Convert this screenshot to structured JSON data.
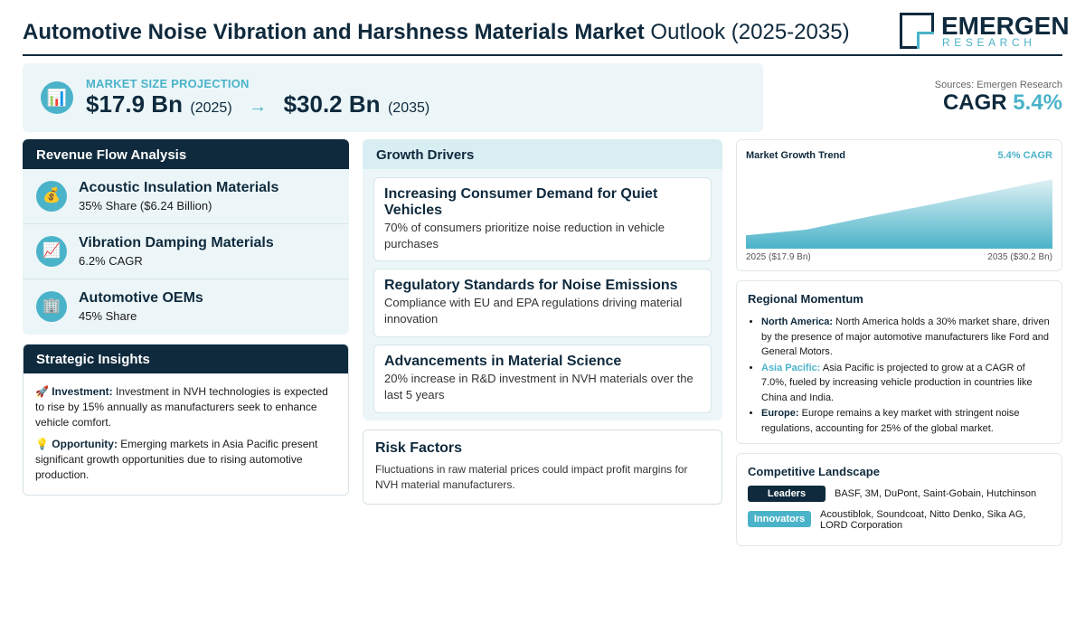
{
  "header": {
    "title_bold": "Automotive Noise Vibration and Harshness Materials Market",
    "title_light": "Outlook (2025-2035)",
    "logo_main": "EMERGEN",
    "logo_sub": "RESEARCH"
  },
  "projection": {
    "label": "MARKET SIZE PROJECTION",
    "start_value": "$17.9 Bn",
    "start_year": "(2025)",
    "arrow": "→",
    "end_value": "$30.2 Bn",
    "end_year": "(2035)",
    "icon": "bar-chart-icon"
  },
  "sources": "Sources: Emergen Research",
  "cagr": {
    "label": "CAGR",
    "value": "5.4%"
  },
  "revenue": {
    "title": "Revenue Flow Analysis",
    "items": [
      {
        "icon": "money-bag-icon",
        "glyph": "💰",
        "title": "Acoustic Insulation Materials",
        "sub": "35% Share ($6.24 Billion)"
      },
      {
        "icon": "trend-up-icon",
        "glyph": "📈",
        "title": "Vibration Damping Materials",
        "sub": "6.2% CAGR"
      },
      {
        "icon": "building-icon",
        "glyph": "🏢",
        "title": "Automotive OEMs",
        "sub": "45% Share"
      }
    ]
  },
  "strategic": {
    "title": "Strategic Insights",
    "items": [
      {
        "glyph": "🚀",
        "label": "Investment:",
        "text": "Investment in NVH technologies is expected to rise by 15% annually as manufacturers seek to enhance vehicle comfort."
      },
      {
        "glyph": "💡",
        "label": "Opportunity:",
        "text": "Emerging markets in Asia Pacific present significant growth opportunities due to rising automotive production."
      }
    ]
  },
  "drivers": {
    "title": "Growth Drivers",
    "items": [
      {
        "title": "Increasing Consumer Demand for Quiet Vehicles",
        "desc": "70% of consumers prioritize noise reduction in vehicle purchases"
      },
      {
        "title": "Regulatory Standards for Noise Emissions",
        "desc": "Compliance with EU and EPA regulations driving material innovation"
      },
      {
        "title": "Advancements in Material Science",
        "desc": "20% increase in R&D investment in NVH materials over the last 5 years"
      }
    ]
  },
  "risk": {
    "title": "Risk Factors",
    "desc": "Fluctuations in raw material prices could impact profit margins for NVH material manufacturers."
  },
  "trend": {
    "title": "Market Growth Trend",
    "cagr_label": "5.4% CAGR",
    "start_label": "2025 ($17.9 Bn)",
    "end_label": "2035 ($30.2 Bn)",
    "colors": {
      "top": "#dff1f5",
      "bottom": "#4bb3c9"
    }
  },
  "chart_data": {
    "type": "area",
    "x": [
      2025,
      2027,
      2029,
      2031,
      2033,
      2035
    ],
    "values": [
      17.9,
      19.2,
      22.0,
      24.6,
      27.4,
      30.2
    ],
    "title": "Market Growth Trend",
    "xlabel": "",
    "ylabel": "",
    "ylim": [
      15,
      32
    ],
    "grid": false,
    "legend": "none"
  },
  "regional": {
    "title": "Regional Momentum",
    "items": [
      {
        "name": "North America:",
        "highlight": false,
        "text": "North America holds a 30% market share, driven by the presence of major automotive manufacturers like Ford and General Motors."
      },
      {
        "name": "Asia Pacific:",
        "highlight": true,
        "text": "Asia Pacific is projected to grow at a CAGR of 7.0%, fueled by increasing vehicle production in countries like China and India."
      },
      {
        "name": "Europe:",
        "highlight": false,
        "text": "Europe remains a key market with stringent noise regulations, accounting for 25% of the global market."
      }
    ]
  },
  "competitive": {
    "title": "Competitive Landscape",
    "leaders_label": "Leaders",
    "leaders": "BASF, 3M, DuPont, Saint-Gobain, Hutchinson",
    "innovators_label": "Innovators",
    "innovators": "Acoustiblok, Soundcoat, Nitto Denko, Sika AG, LORD Corporation"
  },
  "colors": {
    "navy": "#0f2a3d",
    "teal": "#4bb3c9",
    "panel": "#ecf6f8"
  }
}
